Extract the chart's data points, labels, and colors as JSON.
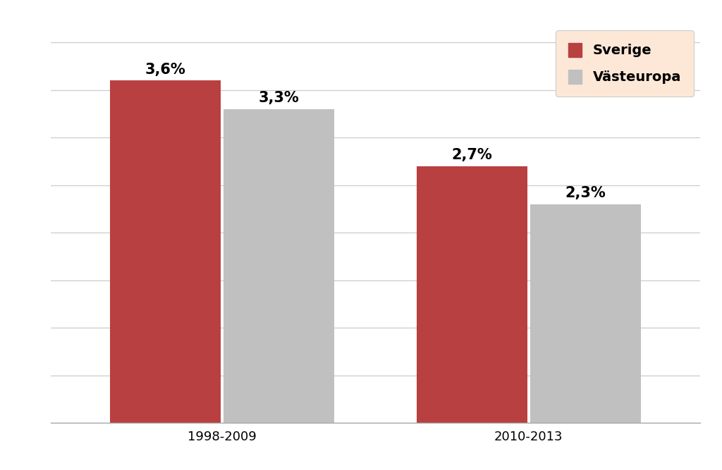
{
  "groups": [
    "1998-2009",
    "2010-2013"
  ],
  "sverige_values": [
    3.6,
    2.7
  ],
  "vasteuropa_values": [
    3.3,
    2.3
  ],
  "sverige_color": "#b94040",
  "vasteuropa_color": "#c0c0c0",
  "legend_labels": [
    "Sverige",
    "Västeuropa"
  ],
  "legend_bg_color": "#fde8d8",
  "bar_width": 0.18,
  "ylim": [
    0,
    4.2
  ],
  "yticks": [
    0.0,
    0.5,
    1.0,
    1.5,
    2.0,
    2.5,
    3.0,
    3.5,
    4.0
  ],
  "tick_fontsize": 13,
  "legend_fontsize": 14,
  "value_fontsize": 15,
  "background_color": "#ffffff",
  "grid_color": "#cccccc",
  "group_centers": [
    0.28,
    0.78
  ],
  "xlim": [
    0.0,
    1.06
  ]
}
